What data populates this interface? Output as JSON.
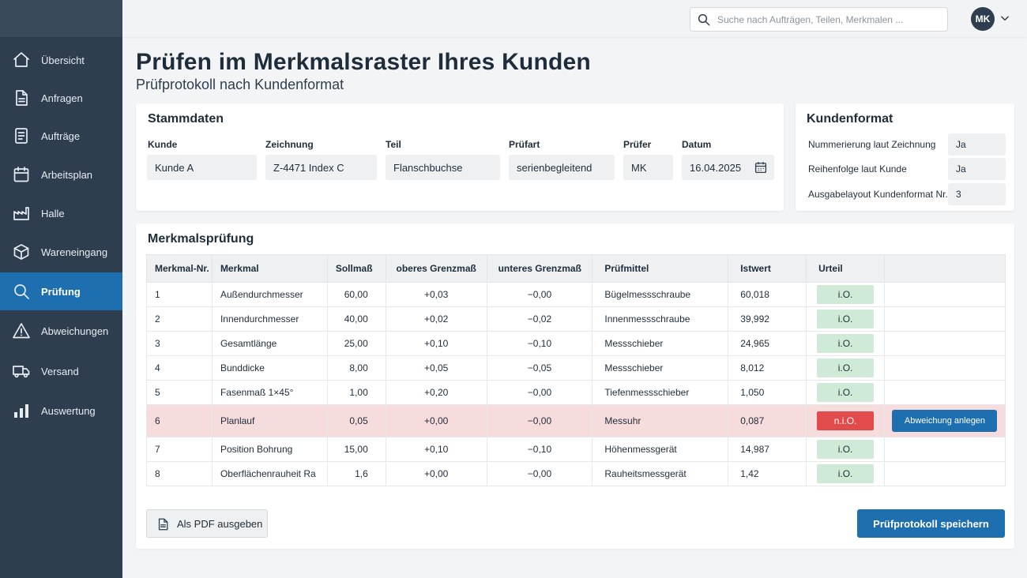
{
  "search": {
    "placeholder": "Suche nach Aufträgen, Teilen, Merkmalen ..."
  },
  "user": {
    "initials": "MK"
  },
  "sidebar": {
    "items": [
      {
        "label": "Übersicht",
        "icon": "home-icon"
      },
      {
        "label": "Anfragen",
        "icon": "document-icon"
      },
      {
        "label": "Aufträge",
        "icon": "clipboard-list-icon"
      },
      {
        "label": "Arbeitsplan",
        "icon": "calendar-icon"
      },
      {
        "label": "Halle",
        "icon": "factory-icon"
      },
      {
        "label": "Wareneingang",
        "icon": "box-icon"
      },
      {
        "label": "Prüfung",
        "icon": "search-icon",
        "active": true
      },
      {
        "label": "Abweichungen",
        "icon": "warning-icon"
      },
      {
        "label": "Versand",
        "icon": "truck-icon"
      },
      {
        "label": "Auswertung",
        "icon": "bar-chart-icon"
      }
    ]
  },
  "page": {
    "title": "Prüfen im Merkmalsraster Ihres Kunden",
    "subtitle": "Prüfprotokoll nach Kundenformat"
  },
  "stammdaten": {
    "title": "Stammdaten",
    "fields": [
      {
        "label": "Kunde",
        "value": "Kunde A"
      },
      {
        "label": "Zeichnung",
        "value": "Z-4471 Index C"
      },
      {
        "label": "Teil",
        "value": "Flanschbuchse"
      },
      {
        "label": "Prüfart",
        "value": "serienbegleitend"
      },
      {
        "label": "Prüfer",
        "value": "MK"
      },
      {
        "label": "Datum",
        "value": "16.04.2025"
      }
    ]
  },
  "kundenformat": {
    "title": "Kundenformat",
    "rows": [
      {
        "label": "Nummerierung laut Zeichnung",
        "value": "Ja"
      },
      {
        "label": "Reihenfolge laut Kunde",
        "value": "Ja"
      },
      {
        "label": "Ausgabelayout Kundenformat Nr.",
        "value": "3"
      }
    ]
  },
  "merkmalspruefung": {
    "title": "Merkmalsprüfung",
    "columns": [
      "Merkmal-Nr.",
      "Merkmal",
      "Sollmaß",
      "oberes Grenzmaß",
      "unteres Grenzmaß",
      "Prüfmittel",
      "Istwert",
      "Urteil",
      ""
    ],
    "rows": [
      {
        "nr": "1",
        "merkmal": "Außendurchmesser",
        "soll": "60,00",
        "oben": "+0,03",
        "unten": "−0,00",
        "pruefmittel": "Bügelmessschraube",
        "ist": "60,018",
        "urteil": "i.O.",
        "ok": true
      },
      {
        "nr": "2",
        "merkmal": "Innendurchmesser",
        "soll": "40,00",
        "oben": "+0,02",
        "unten": "−0,02",
        "pruefmittel": "Innenmessschraube",
        "ist": "39,992",
        "urteil": "i.O.",
        "ok": true
      },
      {
        "nr": "3",
        "merkmal": "Gesamtlänge",
        "soll": "25,00",
        "oben": "+0,10",
        "unten": "−0,10",
        "pruefmittel": "Messschieber",
        "ist": "24,965",
        "urteil": "i.O.",
        "ok": true
      },
      {
        "nr": "4",
        "merkmal": "Bunddicke",
        "soll": "8,00",
        "oben": "+0,05",
        "unten": "−0,05",
        "pruefmittel": "Messschieber",
        "ist": "8,012",
        "urteil": "i.O.",
        "ok": true
      },
      {
        "nr": "5",
        "merkmal": "Fasenmaß 1×45°",
        "soll": "1,00",
        "oben": "+0,20",
        "unten": "−0,00",
        "pruefmittel": "Tiefenmessschieber",
        "ist": "1,050",
        "urteil": "i.O.",
        "ok": true
      },
      {
        "nr": "6",
        "merkmal": "Planlauf",
        "soll": "0,05",
        "oben": "+0,00",
        "unten": "−0,00",
        "pruefmittel": "Messuhr",
        "ist": "0,087",
        "urteil": "n.i.O.",
        "ok": false,
        "action": "Abweichung anlegen"
      },
      {
        "nr": "7",
        "merkmal": "Position Bohrung",
        "soll": "15,00",
        "oben": "+0,10",
        "unten": "−0,10",
        "pruefmittel": "Höhenmessgerät",
        "ist": "14,987",
        "urteil": "i.O.",
        "ok": true
      },
      {
        "nr": "8",
        "merkmal": "Oberflächenrauheit Ra",
        "soll": "1,6",
        "oben": "+0,00",
        "unten": "−0,00",
        "pruefmittel": "Rauheitsmessgerät",
        "ist": "1,42",
        "urteil": "i.O.",
        "ok": true
      }
    ]
  },
  "buttons": {
    "pdf": "Als PDF ausgeben",
    "save": "Prüfprotokoll speichern"
  },
  "colors": {
    "sidebar": "#2f3e4e",
    "accent": "#1e6fb0",
    "ok_badge": "#cfead6",
    "nok_badge": "#e14b4b",
    "nok_row": "#f7dcdd"
  }
}
